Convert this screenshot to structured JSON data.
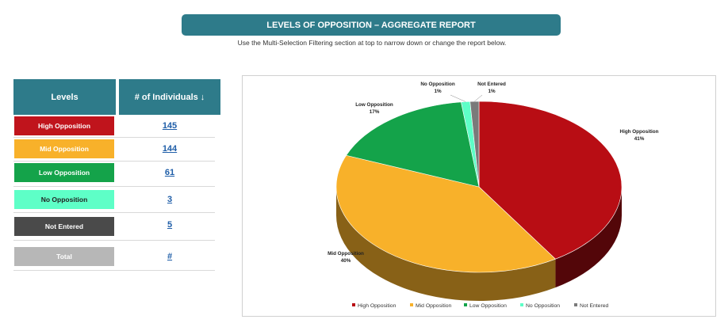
{
  "header": {
    "title": "LEVELS OF OPPOSITION – AGGREGATE REPORT",
    "subtitle": "Use the Multi-Selection Filtering section at top to narrow down or change the report below."
  },
  "table": {
    "col_levels": "Levels",
    "col_count": "# of Individuals  ↓",
    "rows": [
      {
        "label": "High Opposition",
        "count": "145",
        "color": "#c0141c"
      },
      {
        "label": "Mid Opposition",
        "count": "144",
        "color": "#f8b12a"
      },
      {
        "label": "Low Opposition",
        "count": "61",
        "color": "#14a34a"
      },
      {
        "label": "No Opposition",
        "count": "3",
        "color": "#5effc7"
      },
      {
        "label": "Not Entered",
        "count": "5",
        "color": "#4a4a4a"
      },
      {
        "label": "Total",
        "count": "#",
        "color": "#b7b7b7"
      }
    ]
  },
  "chart_data": {
    "type": "pie",
    "categories": [
      "High Opposition",
      "Mid Opposition",
      "Low Opposition",
      "No Opposition",
      "Not Entered"
    ],
    "values": [
      41,
      40,
      17,
      1,
      1
    ],
    "value_labels": [
      "41%",
      "40%",
      "17%",
      "1%",
      "1%"
    ],
    "colors": [
      "#b80d14",
      "#f8b12a",
      "#14a34a",
      "#5effc7",
      "#7a7a7a"
    ],
    "legend_position": "bottom"
  }
}
